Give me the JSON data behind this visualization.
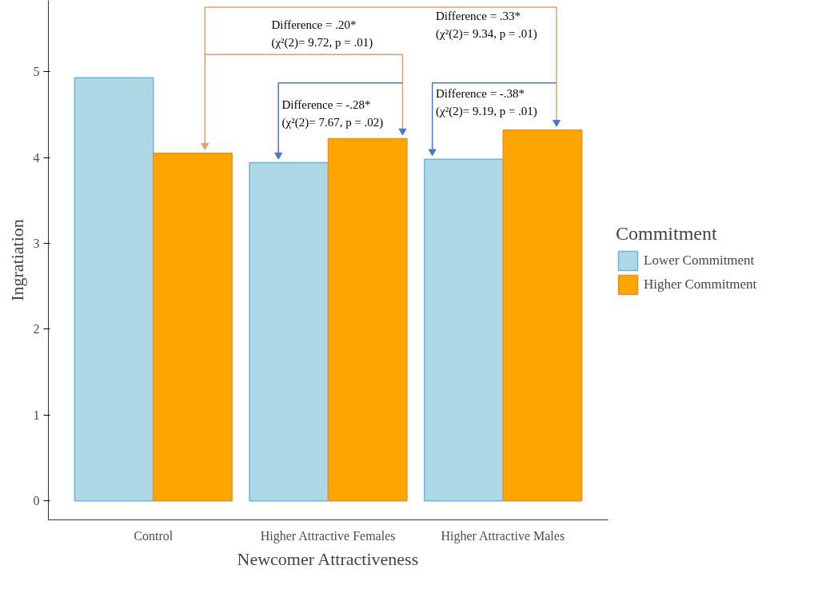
{
  "chart_data": {
    "type": "bar",
    "xlabel": "Newcomer Attractiveness",
    "ylabel": "Ingratiation",
    "legend_title": "Commitment",
    "categories": [
      "Control",
      "Higher Attractive Females",
      "Higher Attractive Males"
    ],
    "series": [
      {
        "name": "Lower Commitment",
        "color": "#add8e6",
        "values": [
          4.93,
          3.94,
          3.98
        ]
      },
      {
        "name": "Higher Commitment",
        "color": "#ffa500",
        "values": [
          4.05,
          4.22,
          4.32
        ]
      }
    ],
    "ylim": [
      -0.22,
      5.83
    ],
    "yticks": [
      0,
      1,
      2,
      3,
      4,
      5
    ],
    "annotations": [
      "Difference = .20*\n(χ²(2)= 9.72, p = .01)",
      "Difference = .33*\n(χ²(2)= 9.34, p = .01)",
      "Difference = -.28*\n(χ²(2)= 7.67, p = .02)",
      "Difference = -.38*\n(χ²(2)= 9.19, p = .01)"
    ],
    "grid": false,
    "legend": "right"
  }
}
